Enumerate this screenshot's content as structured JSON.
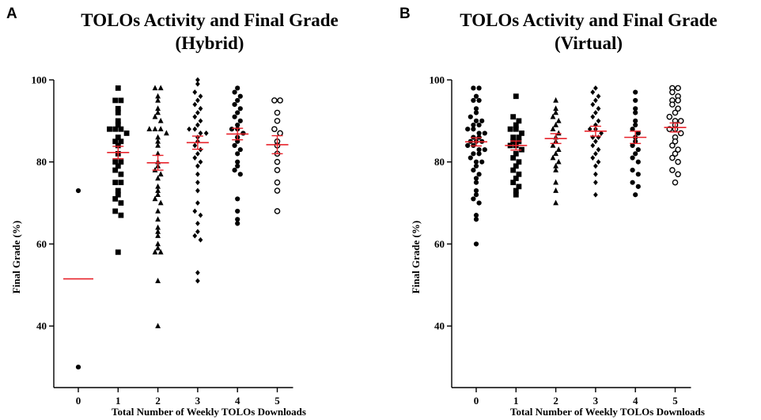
{
  "chart_data": [
    {
      "panel": "A",
      "type": "scatter",
      "title_lines": [
        "TOLOs Activity and Final Grade",
        "(Hybrid)"
      ],
      "xlabel": "Total Number of Weekly TOLOs Downloads",
      "ylabel": "Final Grade (%)",
      "ylim": [
        25,
        100
      ],
      "yticks": [
        40,
        60,
        80,
        100
      ],
      "categories": [
        "0",
        "1",
        "2",
        "3",
        "4",
        "5"
      ],
      "grid": false,
      "marker_colors": {
        "points": "#000000",
        "mean_sem": "#e8232b"
      },
      "series": [
        {
          "category": "0",
          "marker": "circle-filled",
          "values": [
            73,
            30
          ],
          "mean": 51.5,
          "sem": null
        },
        {
          "category": "1",
          "marker": "square",
          "values": [
            98,
            95,
            95,
            93,
            92,
            90,
            89,
            88,
            88,
            88,
            87,
            86,
            85,
            85,
            84,
            82,
            80,
            80,
            79,
            78,
            77,
            75,
            75,
            73,
            72,
            71,
            70,
            68,
            67,
            58
          ],
          "mean": 82.3,
          "sem": 1.5
        },
        {
          "category": "2",
          "marker": "triangle",
          "values": [
            98,
            98,
            96,
            95,
            93,
            92,
            91,
            90,
            88,
            88,
            88,
            87,
            86,
            85,
            84,
            82,
            80,
            79,
            78,
            77,
            76,
            74,
            73,
            72,
            71,
            70,
            68,
            66,
            64,
            63,
            62,
            60,
            59,
            58,
            58,
            51,
            40
          ],
          "mean": 79.8,
          "sem": 1.8
        },
        {
          "category": "3",
          "marker": "diamond",
          "values": [
            100,
            99,
            97,
            96,
            95,
            94,
            93,
            92,
            91,
            90,
            89,
            88,
            88,
            87,
            87,
            86,
            85,
            84,
            83,
            82,
            81,
            80,
            79,
            77,
            75,
            73,
            70,
            68,
            67,
            65,
            63,
            62,
            61,
            53,
            51
          ],
          "mean": 84.7,
          "sem": 1.6
        },
        {
          "category": "4",
          "marker": "circle-filled",
          "values": [
            98,
            97,
            96,
            95,
            94,
            93,
            92,
            91,
            90,
            89,
            88,
            88,
            87,
            86,
            85,
            84,
            83,
            82,
            80,
            79,
            78,
            77,
            71,
            68,
            66,
            65
          ],
          "mean": 86.8,
          "sem": 1.4
        },
        {
          "category": "5",
          "marker": "circle-open",
          "values": [
            95,
            95,
            92,
            90,
            88,
            87,
            85,
            84,
            82,
            80,
            78,
            75,
            73,
            68
          ],
          "mean": 84.2,
          "sem": 2.2
        }
      ]
    },
    {
      "panel": "B",
      "type": "scatter",
      "title_lines": [
        "TOLOs Activity and Final Grade",
        "(Virtual)"
      ],
      "xlabel": "Total Number of Weekly TOLOs Downloads",
      "ylabel": "Final Grade (%)",
      "ylim": [
        25,
        100
      ],
      "yticks": [
        40,
        60,
        80,
        100
      ],
      "categories": [
        "0",
        "1",
        "2",
        "3",
        "4",
        "5"
      ],
      "grid": false,
      "marker_colors": {
        "points": "#000000",
        "mean_sem": "#e8232b"
      },
      "series": [
        {
          "category": "0",
          "marker": "circle-filled",
          "values": [
            98,
            98,
            96,
            95,
            95,
            93,
            92,
            91,
            90,
            90,
            89,
            89,
            88,
            88,
            87,
            87,
            86,
            86,
            85,
            85,
            85,
            84,
            84,
            83,
            83,
            82,
            82,
            81,
            80,
            80,
            79,
            78,
            77,
            76,
            75,
            73,
            72,
            71,
            70,
            67,
            66,
            60
          ],
          "mean": 84.9,
          "sem": 1.0
        },
        {
          "category": "1",
          "marker": "square",
          "values": [
            96,
            91,
            90,
            89,
            88,
            88,
            87,
            86,
            86,
            85,
            85,
            84,
            84,
            83,
            82,
            81,
            80,
            79,
            78,
            77,
            76,
            75,
            74,
            73,
            72
          ],
          "mean": 84.0,
          "sem": 1.1
        },
        {
          "category": "2",
          "marker": "triangle",
          "values": [
            95,
            93,
            92,
            91,
            90,
            89,
            88,
            87,
            86,
            85,
            84,
            83,
            82,
            81,
            80,
            79,
            78,
            75,
            73,
            70
          ],
          "mean": 85.7,
          "sem": 1.2
        },
        {
          "category": "3",
          "marker": "diamond",
          "values": [
            98,
            97,
            96,
            95,
            94,
            93,
            92,
            91,
            90,
            89,
            88,
            88,
            87,
            86,
            86,
            85,
            84,
            83,
            82,
            81,
            80,
            79,
            77,
            75,
            72
          ],
          "mean": 87.5,
          "sem": 1.2
        },
        {
          "category": "4",
          "marker": "circle-filled",
          "values": [
            97,
            95,
            93,
            92,
            90,
            89,
            88,
            87,
            86,
            85,
            84,
            83,
            82,
            81,
            80,
            78,
            77,
            75,
            74,
            72
          ],
          "mean": 86.0,
          "sem": 1.5
        },
        {
          "category": "5",
          "marker": "circle-open",
          "values": [
            98,
            98,
            97,
            96,
            95,
            95,
            94,
            93,
            92,
            91,
            90,
            90,
            89,
            88,
            88,
            87,
            86,
            85,
            84,
            83,
            82,
            81,
            80,
            78,
            77,
            75
          ],
          "mean": 88.4,
          "sem": 1.1
        }
      ]
    }
  ]
}
